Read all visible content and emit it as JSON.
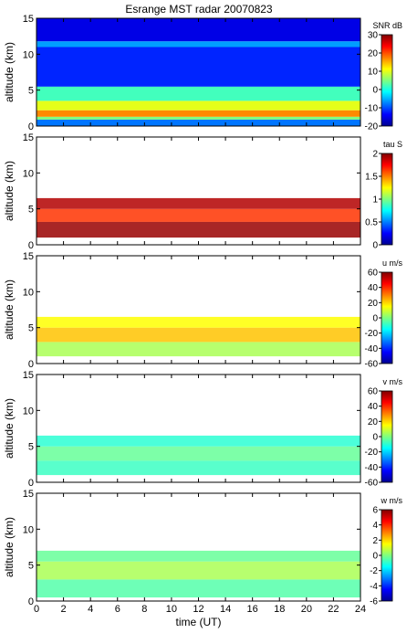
{
  "chart_data": [
    {
      "type": "heatmap",
      "title": "Esrange MST radar 20070823",
      "ylabel": "altitude (km)",
      "ylim": [
        0,
        15
      ],
      "yticks": [
        "0",
        "5",
        "10",
        "15"
      ],
      "xlim": [
        0,
        24
      ],
      "colorbar_label": "SNR dB",
      "colorbar_range": [
        -20,
        30
      ],
      "colorbar_ticks": [
        "30",
        "20",
        "10",
        "0",
        "-10",
        "-20"
      ],
      "grid": false,
      "layers": [
        {
          "alt_from": 0.0,
          "alt_to": 0.9,
          "value": -8
        },
        {
          "alt_from": 0.9,
          "alt_to": 1.3,
          "value": 5
        },
        {
          "alt_from": 1.3,
          "alt_to": 2.2,
          "value": 17
        },
        {
          "alt_from": 2.2,
          "alt_to": 3.5,
          "value": 10
        },
        {
          "alt_from": 3.5,
          "alt_to": 5.5,
          "value": 2
        },
        {
          "alt_from": 5.5,
          "alt_to": 11.0,
          "value": -12
        },
        {
          "alt_from": 11.0,
          "alt_to": 11.8,
          "value": -6
        },
        {
          "alt_from": 11.8,
          "alt_to": 15.0,
          "value": -15
        }
      ]
    },
    {
      "type": "heatmap",
      "ylabel": "altitude (km)",
      "ylim": [
        0,
        15
      ],
      "yticks": [
        "0",
        "5",
        "10",
        "15"
      ],
      "xlim": [
        0,
        24
      ],
      "colorbar_label": "tau S",
      "colorbar_range": [
        0,
        2
      ],
      "colorbar_ticks": [
        "2",
        "1.5",
        "1",
        "0.5",
        "0"
      ],
      "grid": false,
      "layers": [
        {
          "alt_from": 1.0,
          "alt_to": 3.2,
          "value": 1.95
        },
        {
          "alt_from": 3.2,
          "alt_to": 5.0,
          "value": 1.65
        },
        {
          "alt_from": 5.0,
          "alt_to": 6.5,
          "value": 1.9
        }
      ]
    },
    {
      "type": "heatmap",
      "ylabel": "altitude (km)",
      "ylim": [
        0,
        15
      ],
      "yticks": [
        "0",
        "5",
        "10",
        "15"
      ],
      "xlim": [
        0,
        24
      ],
      "colorbar_label": "u m/s",
      "colorbar_range": [
        -60,
        60
      ],
      "colorbar_ticks": [
        "60",
        "40",
        "20",
        "0",
        "-20",
        "-40",
        "-60"
      ],
      "grid": false,
      "layers": [
        {
          "alt_from": 1.0,
          "alt_to": 3.0,
          "value": 5
        },
        {
          "alt_from": 3.0,
          "alt_to": 5.0,
          "value": 22
        },
        {
          "alt_from": 5.0,
          "alt_to": 6.5,
          "value": 15
        }
      ]
    },
    {
      "type": "heatmap",
      "ylabel": "altitude (km)",
      "ylim": [
        0,
        15
      ],
      "yticks": [
        "0",
        "5",
        "10",
        "15"
      ],
      "xlim": [
        0,
        24
      ],
      "colorbar_label": "v m/s",
      "colorbar_range": [
        -60,
        60
      ],
      "colorbar_ticks": [
        "60",
        "40",
        "20",
        "0",
        "-20",
        "-40",
        "-60"
      ],
      "grid": false,
      "layers": [
        {
          "alt_from": 1.0,
          "alt_to": 3.0,
          "value": -8
        },
        {
          "alt_from": 3.0,
          "alt_to": 5.0,
          "value": -3
        },
        {
          "alt_from": 5.0,
          "alt_to": 6.5,
          "value": -10
        }
      ]
    },
    {
      "type": "heatmap",
      "ylabel": "altitude (km)",
      "ylim": [
        0,
        15
      ],
      "yticks": [
        "0",
        "5",
        "10",
        "15"
      ],
      "xlim": [
        0,
        24
      ],
      "xlabel": "time (UT)",
      "xticks": [
        "0",
        "2",
        "4",
        "6",
        "8",
        "10",
        "12",
        "14",
        "16",
        "18",
        "20",
        "22",
        "24"
      ],
      "colorbar_label": "w m/s",
      "colorbar_range": [
        -6,
        6
      ],
      "colorbar_ticks": [
        "6",
        "4",
        "2",
        "0",
        "-2",
        "-4",
        "-6"
      ],
      "grid": false,
      "layers": [
        {
          "alt_from": 0.5,
          "alt_to": 3.0,
          "value": -0.5
        },
        {
          "alt_from": 3.0,
          "alt_to": 5.5,
          "value": 0.5
        },
        {
          "alt_from": 5.5,
          "alt_to": 7.0,
          "value": -0.3
        }
      ]
    }
  ]
}
